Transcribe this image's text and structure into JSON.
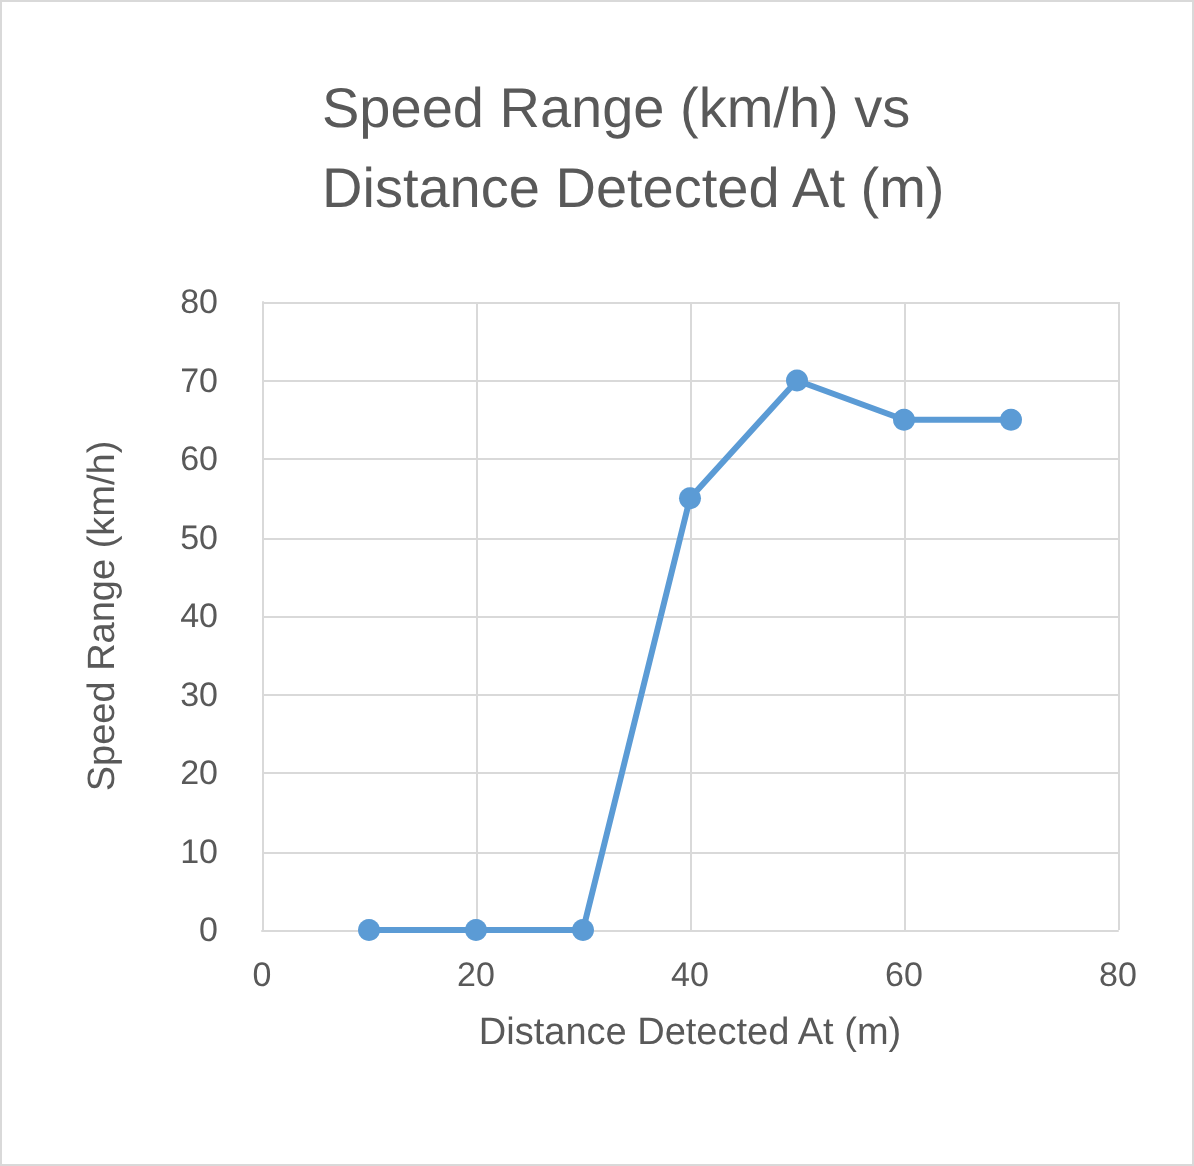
{
  "chart_data": {
    "type": "line",
    "title": "Speed Range (km/h) vs Distance Detected At (m)",
    "xlabel": "Distance Detected At (m)",
    "ylabel": "Speed Range (km/h)",
    "x": [
      10,
      20,
      30,
      40,
      50,
      60,
      70
    ],
    "series": [
      {
        "color": "#5b9bd5",
        "values": [
          0,
          0,
          0,
          55,
          70,
          65,
          65
        ]
      }
    ],
    "xlim": [
      0,
      80
    ],
    "xticks": [
      0,
      20,
      40,
      60,
      80
    ],
    "ylim": [
      0,
      80
    ],
    "yticks": [
      0,
      10,
      20,
      30,
      40,
      50,
      60,
      70,
      80
    ],
    "grid": true,
    "marker": "circle",
    "line_style": "solid"
  }
}
